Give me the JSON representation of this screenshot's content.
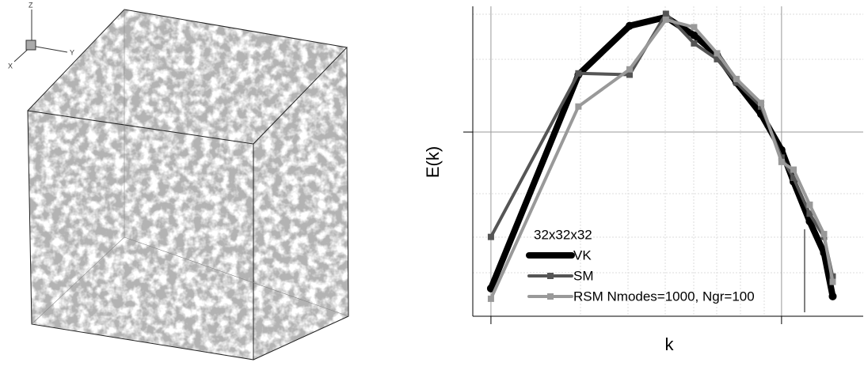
{
  "triad": {
    "z": "Z",
    "x": "X",
    "y": "Y"
  },
  "chart_data": {
    "type": "line",
    "x_label": "k",
    "y_label": "E(k)",
    "x_log": true,
    "y_log": true,
    "xlim": [
      0.866,
      19.1
    ],
    "ylim": [
      0.2,
      3
    ],
    "xticks": [
      1,
      10
    ],
    "yticks": [
      1
    ],
    "grid": true,
    "legend_title": "32x32x32",
    "legend": "lower-left",
    "x": [
      1,
      2,
      3,
      4,
      5,
      6,
      7,
      8.5,
      10,
      11,
      12.5,
      14,
      15
    ],
    "series": [
      {
        "name": "VK",
        "color": "#000000",
        "width": 8,
        "marker": "none",
        "values": [
          0.255,
          1.65,
          2.53,
          2.73,
          2.33,
          1.96,
          1.54,
          1.17,
          0.855,
          0.648,
          0.458,
          0.348,
          0.238
        ]
      },
      {
        "name": "SM",
        "color": "#555555",
        "width": 4,
        "marker": "square",
        "values": [
          0.4,
          1.67,
          1.65,
          2.81,
          2.17,
          1.89,
          1.54,
          1.25,
          0.8,
          0.67,
          0.49,
          0.4,
          0.283
        ]
      },
      {
        "name": "RSM Nmodes=1000, Ngr=100",
        "color": "#999999",
        "width": 4,
        "marker": "square",
        "values": [
          0.233,
          1.25,
          1.73,
          2.67,
          2.5,
          1.99,
          1.59,
          1.29,
          0.77,
          0.72,
          0.53,
          0.41,
          0.27
        ]
      }
    ]
  }
}
